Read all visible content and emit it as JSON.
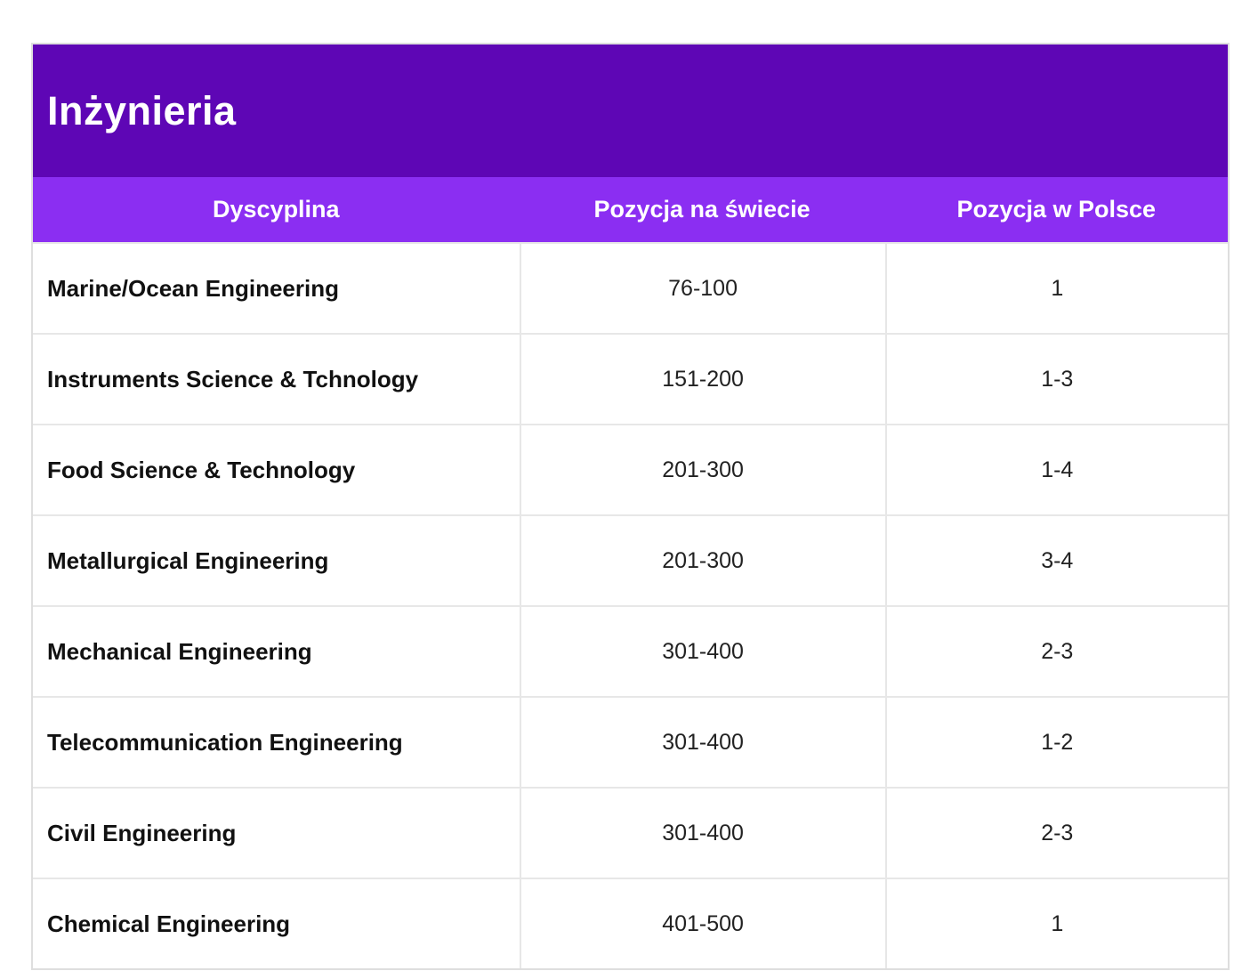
{
  "table": {
    "title": "Inżynieria",
    "columns": [
      "Dyscyplina",
      "Pozycja na świecie",
      "Pozycja w Polsce"
    ],
    "rows": [
      {
        "discipline": "Marine/Ocean Engineering",
        "world": "76-100",
        "poland": "1"
      },
      {
        "discipline": "Instruments Science & Tchnology",
        "world": "151-200",
        "poland": "1-3"
      },
      {
        "discipline": "Food Science & Technology",
        "world": "201-300",
        "poland": "1-4"
      },
      {
        "discipline": "Metallurgical Engineering",
        "world": "201-300",
        "poland": "3-4"
      },
      {
        "discipline": "Mechanical Engineering",
        "world": "301-400",
        "poland": "2-3"
      },
      {
        "discipline": "Telecommunication Engineering",
        "world": "301-400",
        "poland": "1-2"
      },
      {
        "discipline": "Civil Engineering",
        "world": "301-400",
        "poland": "2-3"
      },
      {
        "discipline": "Chemical Engineering",
        "world": "401-500",
        "poland": "1"
      }
    ]
  },
  "colors": {
    "banner_bg": "#5E06B5",
    "header_bg": "#8B2EF2",
    "header_text": "#FFFFFF",
    "discipline_text": "#111111",
    "value_text": "#222222",
    "border": "#E7E7E7",
    "page_bg": "#FFFFFF"
  },
  "chart_data": {
    "type": "table",
    "title": "Inżynieria",
    "columns": [
      "Dyscyplina",
      "Pozycja na świecie",
      "Pozycja w Polsce"
    ],
    "rows": [
      [
        "Marine/Ocean Engineering",
        "76-100",
        "1"
      ],
      [
        "Instruments Science & Tchnology",
        "151-200",
        "1-3"
      ],
      [
        "Food Science & Technology",
        "201-300",
        "1-4"
      ],
      [
        "Metallurgical Engineering",
        "201-300",
        "3-4"
      ],
      [
        "Mechanical Engineering",
        "301-400",
        "2-3"
      ],
      [
        "Telecommunication Engineering",
        "301-400",
        "1-2"
      ],
      [
        "Civil Engineering",
        "301-400",
        "2-3"
      ],
      [
        "Chemical Engineering",
        "401-500",
        "1"
      ]
    ]
  }
}
